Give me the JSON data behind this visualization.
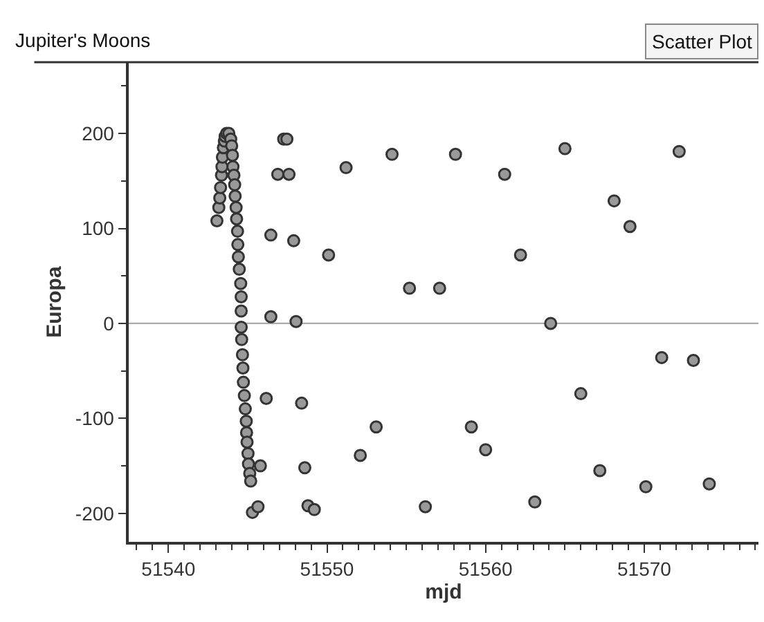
{
  "chart_data": {
    "type": "scatter",
    "title": "Jupiter's Moons",
    "xlabel": "mjd",
    "ylabel": "Europa",
    "annotations": [
      "Scatter Plot"
    ],
    "x": [
      51543.06,
      51543.18,
      51543.24,
      51543.29,
      51543.35,
      51543.38,
      51543.41,
      51543.47,
      51543.53,
      51543.58,
      51543.67,
      51543.81,
      51543.93,
      51543.99,
      51544.04,
      51544.07,
      51544.13,
      51544.18,
      51544.21,
      51544.27,
      51544.3,
      51544.36,
      51544.38,
      51544.41,
      51544.47,
      51544.56,
      51544.59,
      51544.59,
      51544.59,
      51544.62,
      51544.67,
      51544.7,
      51544.73,
      51544.79,
      51544.85,
      51544.91,
      51544.93,
      51544.96,
      51545.02,
      51545.05,
      51545.13,
      51545.19,
      51546.46,
      51547.27,
      51547.47,
      51546.9,
      51547.6,
      51547.9,
      51546.46,
      51548.05,
      51546.17,
      51548.4,
      51545.8,
      51548.6,
      51545.3,
      51545.65,
      51548.8,
      51549.2,
      51550.1,
      51551.2,
      51554.1,
      51558.1,
      51561.2,
      51555.2,
      51557.1,
      51553.1,
      51552.1,
      51559.1,
      51560.0,
      51556.2,
      51565.0,
      51572.2,
      51568.1,
      51569.1,
      51562.2,
      51564.1,
      51571.1,
      51573.1,
      51566.0,
      51567.2,
      51570.1,
      51574.1,
      51563.1
    ],
    "values": [
      108,
      122,
      132,
      143,
      156,
      165,
      175,
      185,
      192,
      197,
      200,
      200,
      194,
      187,
      177,
      165,
      156,
      146,
      134,
      122,
      110,
      97,
      83,
      70,
      57,
      42,
      28,
      13,
      -4,
      -17,
      -33,
      -47,
      -62,
      -76,
      -90,
      -103,
      -115,
      -125,
      -137,
      -148,
      -158,
      -166,
      93,
      194,
      194,
      157,
      157,
      87,
      7,
      2,
      -79,
      -84,
      -150,
      -152,
      -199,
      -193,
      -192,
      -196,
      72,
      164,
      178,
      178,
      157,
      37,
      37,
      -109,
      -139,
      -109,
      -133,
      -193,
      184,
      181,
      129,
      102,
      72,
      0,
      -36,
      -39,
      -74,
      -155,
      -172,
      -169,
      -188
    ],
    "color": "#999999",
    "marker": "circle",
    "xlim": [
      51537.5,
      51577.2
    ],
    "ylim": [
      -230,
      275
    ],
    "xticks": [
      {
        "value": 51538,
        "label": null
      },
      {
        "value": 51539,
        "label": null
      },
      51540,
      {
        "value": 51541,
        "label": null
      },
      {
        "value": 51542,
        "label": null
      },
      {
        "value": 51543,
        "label": null
      },
      {
        "value": 51544,
        "label": null
      },
      {
        "value": 51545,
        "label": null
      },
      {
        "value": 51546,
        "label": null
      },
      {
        "value": 51547,
        "label": null
      },
      {
        "value": 51548,
        "label": null
      },
      {
        "value": 51549,
        "label": null
      },
      51550,
      {
        "value": 51551,
        "label": null
      },
      {
        "value": 51552,
        "label": null
      },
      {
        "value": 51553,
        "label": null
      },
      {
        "value": 51554,
        "label": null
      },
      {
        "value": 51555,
        "label": null
      },
      {
        "value": 51556,
        "label": null
      },
      {
        "value": 51557,
        "label": null
      },
      {
        "value": 51558,
        "label": null
      },
      {
        "value": 51559,
        "label": null
      },
      51560,
      {
        "value": 51561,
        "label": null
      },
      {
        "value": 51562,
        "label": null
      },
      {
        "value": 51563,
        "label": null
      },
      {
        "value": 51564,
        "label": null
      },
      {
        "value": 51565,
        "label": null
      },
      {
        "value": 51566,
        "label": null
      },
      {
        "value": 51567,
        "label": null
      },
      {
        "value": 51568,
        "label": null
      },
      {
        "value": 51569,
        "label": null
      },
      51570,
      {
        "value": 51571,
        "label": null
      },
      {
        "value": 51572,
        "label": null
      },
      {
        "value": 51573,
        "label": null
      },
      {
        "value": 51574,
        "label": null
      },
      {
        "value": 51575,
        "label": null
      },
      {
        "value": 51576,
        "label": null
      },
      {
        "value": 51577,
        "label": null
      }
    ],
    "yticks": [
      -200,
      {
        "value": -150,
        "label": null
      },
      -100,
      {
        "value": -50,
        "label": null
      },
      0,
      {
        "value": 50,
        "label": null
      },
      100,
      {
        "value": 150,
        "label": null
      },
      200,
      {
        "value": 250,
        "label": null
      }
    ],
    "ref_lines": [
      {
        "axis": "y",
        "value": 0,
        "color": "#aaaaaa"
      }
    ],
    "grid": false,
    "legend": false
  }
}
